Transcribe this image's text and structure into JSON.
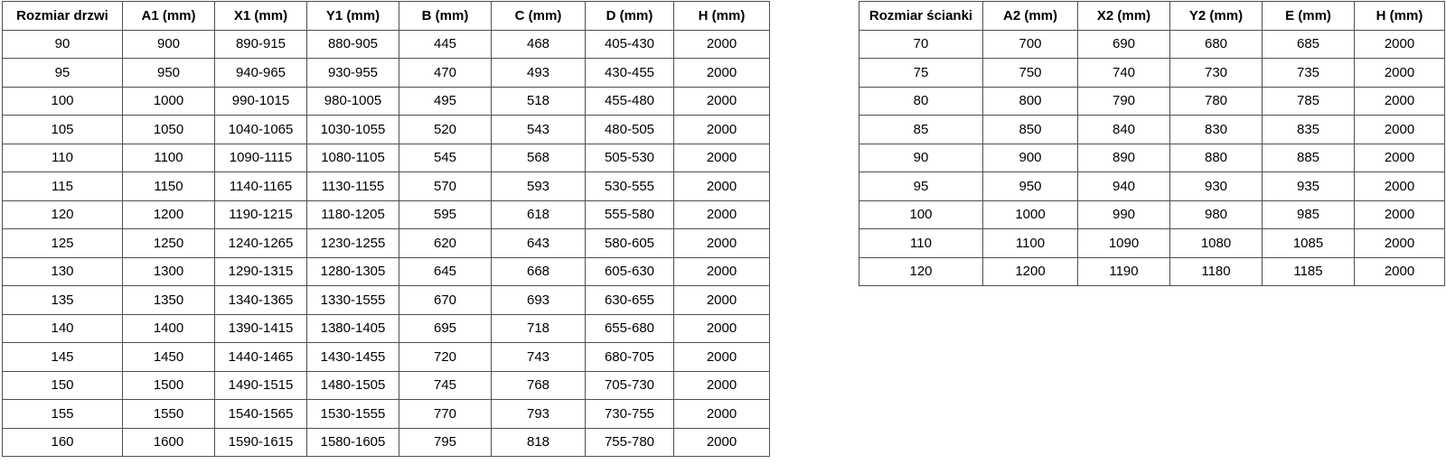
{
  "colors": {
    "border": "#4f4f4f",
    "text": "#000000",
    "background": "#ffffff"
  },
  "door_table": {
    "headers": [
      "Rozmiar drzwi",
      "A1 (mm)",
      "X1 (mm)",
      "Y1 (mm)",
      "B (mm)",
      "C (mm)",
      "D (mm)",
      "H (mm)"
    ],
    "rows": [
      [
        "90",
        "900",
        "890-915",
        "880-905",
        "445",
        "468",
        "405-430",
        "2000"
      ],
      [
        "95",
        "950",
        "940-965",
        "930-955",
        "470",
        "493",
        "430-455",
        "2000"
      ],
      [
        "100",
        "1000",
        "990-1015",
        "980-1005",
        "495",
        "518",
        "455-480",
        "2000"
      ],
      [
        "105",
        "1050",
        "1040-1065",
        "1030-1055",
        "520",
        "543",
        "480-505",
        "2000"
      ],
      [
        "110",
        "1100",
        "1090-1115",
        "1080-1105",
        "545",
        "568",
        "505-530",
        "2000"
      ],
      [
        "115",
        "1150",
        "1140-1165",
        "1130-1155",
        "570",
        "593",
        "530-555",
        "2000"
      ],
      [
        "120",
        "1200",
        "1190-1215",
        "1180-1205",
        "595",
        "618",
        "555-580",
        "2000"
      ],
      [
        "125",
        "1250",
        "1240-1265",
        "1230-1255",
        "620",
        "643",
        "580-605",
        "2000"
      ],
      [
        "130",
        "1300",
        "1290-1315",
        "1280-1305",
        "645",
        "668",
        "605-630",
        "2000"
      ],
      [
        "135",
        "1350",
        "1340-1365",
        "1330-1555",
        "670",
        "693",
        "630-655",
        "2000"
      ],
      [
        "140",
        "1400",
        "1390-1415",
        "1380-1405",
        "695",
        "718",
        "655-680",
        "2000"
      ],
      [
        "145",
        "1450",
        "1440-1465",
        "1430-1455",
        "720",
        "743",
        "680-705",
        "2000"
      ],
      [
        "150",
        "1500",
        "1490-1515",
        "1480-1505",
        "745",
        "768",
        "705-730",
        "2000"
      ],
      [
        "155",
        "1550",
        "1540-1565",
        "1530-1555",
        "770",
        "793",
        "730-755",
        "2000"
      ],
      [
        "160",
        "1600",
        "1590-1615",
        "1580-1605",
        "795",
        "818",
        "755-780",
        "2000"
      ]
    ]
  },
  "wall_table": {
    "headers": [
      "Rozmiar ścianki",
      "A2 (mm)",
      "X2 (mm)",
      "Y2 (mm)",
      "E (mm)",
      "H (mm)"
    ],
    "rows": [
      [
        "70",
        "700",
        "690",
        "680",
        "685",
        "2000"
      ],
      [
        "75",
        "750",
        "740",
        "730",
        "735",
        "2000"
      ],
      [
        "80",
        "800",
        "790",
        "780",
        "785",
        "2000"
      ],
      [
        "85",
        "850",
        "840",
        "830",
        "835",
        "2000"
      ],
      [
        "90",
        "900",
        "890",
        "880",
        "885",
        "2000"
      ],
      [
        "95",
        "950",
        "940",
        "930",
        "935",
        "2000"
      ],
      [
        "100",
        "1000",
        "990",
        "980",
        "985",
        "2000"
      ],
      [
        "110",
        "1100",
        "1090",
        "1080",
        "1085",
        "2000"
      ],
      [
        "120",
        "1200",
        "1190",
        "1180",
        "1185",
        "2000"
      ]
    ]
  }
}
